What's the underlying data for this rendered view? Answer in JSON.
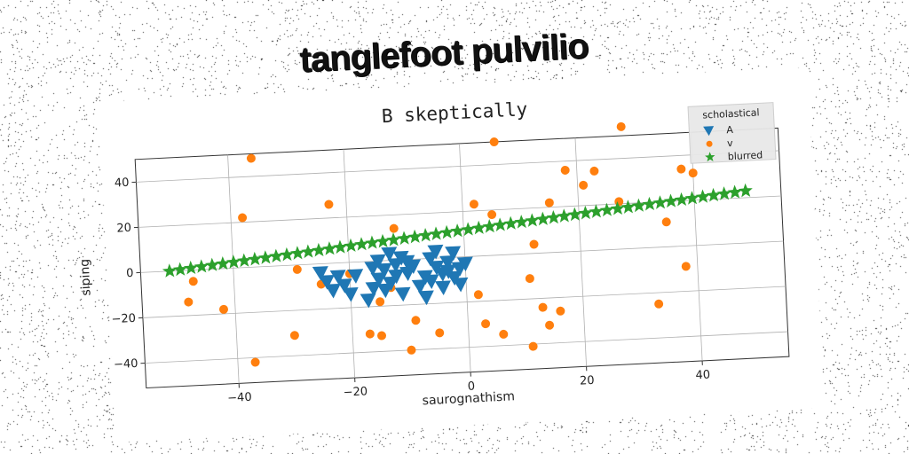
{
  "headline": "tanglefoot pulvilio",
  "chart_data": {
    "type": "scatter",
    "title": "B skeptically",
    "xlabel": "saurognathism",
    "ylabel": "siping",
    "xlim": [
      -56,
      55
    ],
    "ylim": [
      -51,
      50
    ],
    "xticks": [
      -40,
      -20,
      0,
      20,
      40
    ],
    "yticks": [
      -40,
      -20,
      0,
      20,
      40
    ],
    "xtick_labels": [
      "−40",
      "−20",
      "0",
      "20",
      "40"
    ],
    "ytick_labels": [
      "−40",
      "−20",
      "0",
      "20",
      "40"
    ],
    "grid": true,
    "legend": {
      "title": "scholastical",
      "position": "top-right"
    },
    "series": [
      {
        "name": "A",
        "marker": "triangle-down",
        "color": "#1f77b4",
        "points": [
          [
            -25,
            -4
          ],
          [
            -24,
            -8
          ],
          [
            -23,
            -12
          ],
          [
            -22,
            -6
          ],
          [
            -21,
            -10
          ],
          [
            -20,
            -14
          ],
          [
            -19,
            -6
          ],
          [
            -17,
            -17
          ],
          [
            -16,
            -12
          ],
          [
            -15,
            -8
          ],
          [
            -15,
            0
          ],
          [
            -14,
            -4
          ],
          [
            -13,
            -10
          ],
          [
            -13,
            3
          ],
          [
            -12,
            -2
          ],
          [
            -12,
            -7
          ],
          [
            -11,
            1
          ],
          [
            -11,
            -15
          ],
          [
            -10,
            -6
          ],
          [
            -9,
            -3
          ],
          [
            -8,
            -12
          ],
          [
            -7,
            -17
          ],
          [
            -7,
            -8
          ],
          [
            -6,
            0
          ],
          [
            -6,
            -10
          ],
          [
            -5,
            -4
          ],
          [
            -5,
            3
          ],
          [
            -4,
            -7
          ],
          [
            -4,
            -13
          ],
          [
            -3,
            -2
          ],
          [
            -2,
            2
          ],
          [
            -2,
            -9
          ],
          [
            -1,
            -5
          ],
          [
            0,
            -3
          ],
          [
            -1,
            -12
          ],
          [
            -3,
            -6
          ],
          [
            -14,
            -13
          ],
          [
            -10,
            -1
          ],
          [
            -16,
            -3
          ]
        ]
      },
      {
        "name": "v",
        "marker": "circle",
        "color": "#ff7f0e",
        "points": [
          [
            -36,
            48
          ],
          [
            -38,
            22
          ],
          [
            -23,
            26
          ],
          [
            -12,
            14
          ],
          [
            2,
            23
          ],
          [
            5,
            18
          ],
          [
            6,
            50
          ],
          [
            15,
            22
          ],
          [
            18,
            36
          ],
          [
            21,
            29
          ],
          [
            23,
            35
          ],
          [
            27,
            21
          ],
          [
            28,
            54
          ],
          [
            38,
            34
          ],
          [
            40,
            32
          ],
          [
            35,
            11
          ],
          [
            38,
            -9
          ],
          [
            -47,
            -5
          ],
          [
            -48,
            -14
          ],
          [
            -42,
            -18
          ],
          [
            -29,
            -2
          ],
          [
            -25,
            -9
          ],
          [
            -20,
            -5
          ],
          [
            -15,
            -18
          ],
          [
            -9,
            -27
          ],
          [
            -10,
            -40
          ],
          [
            -15,
            -33
          ],
          [
            -17,
            -32
          ],
          [
            -30,
            -31
          ],
          [
            -37,
            -42
          ],
          [
            -5,
            -33
          ],
          [
            2,
            -17
          ],
          [
            3,
            -30
          ],
          [
            6,
            -35
          ],
          [
            11,
            -41
          ],
          [
            11,
            -11
          ],
          [
            12,
            4
          ],
          [
            13,
            -24
          ],
          [
            14,
            -32
          ],
          [
            16,
            -26
          ],
          [
            33,
            -25
          ],
          [
            -13,
            -12
          ]
        ]
      },
      {
        "name": "blurred",
        "marker": "star",
        "color": "#2ca02c",
        "line_x_start": -51,
        "line_x_end": 49,
        "line_x_step": 1.85,
        "line_y_at_start": 0,
        "line_y_at_end": 23
      }
    ]
  }
}
